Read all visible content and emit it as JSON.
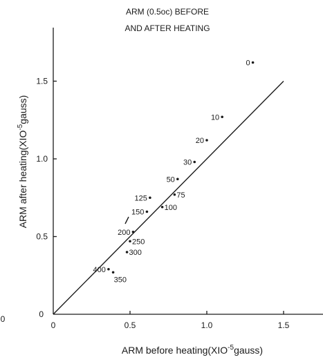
{
  "chart_data": {
    "type": "scatter",
    "title_lines": [
      "ARM (0.5oc) BEFORE",
      "AND AFTER HEATING"
    ],
    "xlabel": "ARM before heating(XIO",
    "xlabel_exp": "-5",
    "xlabel_end": "gauss)",
    "ylabel": "ARM after heating(XIO",
    "ylabel_exp": "-5",
    "ylabel_end": "gauss)",
    "xlim": [
      0,
      1.65
    ],
    "ylim": [
      0,
      1.85
    ],
    "x_ticks": [
      {
        "value": 0,
        "label": "0"
      },
      {
        "value": 0.5,
        "label": "0.5"
      },
      {
        "value": 1.0,
        "label": "1.0"
      },
      {
        "value": 1.5,
        "label": "1.5"
      }
    ],
    "y_ticks": [
      {
        "value": 0,
        "label": "0"
      },
      {
        "value": 0.5,
        "label": "0.5"
      },
      {
        "value": 1.0,
        "label": "1.0"
      },
      {
        "value": 1.5,
        "label": "1.5"
      }
    ],
    "fit_line": {
      "x": [
        0,
        1.5
      ],
      "y": [
        0,
        1.5
      ]
    },
    "points": [
      {
        "label": "0",
        "x": 1.3,
        "y": 1.62
      },
      {
        "label": "10",
        "x": 1.1,
        "y": 1.27
      },
      {
        "label": "20",
        "x": 1.0,
        "y": 1.12
      },
      {
        "label": "30",
        "x": 0.92,
        "y": 0.98
      },
      {
        "label": "50",
        "x": 0.81,
        "y": 0.87
      },
      {
        "label": "75",
        "x": 0.79,
        "y": 0.77
      },
      {
        "label": "125",
        "x": 0.63,
        "y": 0.75
      },
      {
        "label": "150",
        "x": 0.61,
        "y": 0.66
      },
      {
        "label": "100",
        "x": 0.71,
        "y": 0.69
      },
      {
        "label": "200",
        "x": 0.52,
        "y": 0.53
      },
      {
        "label": "250",
        "x": 0.5,
        "y": 0.47
      },
      {
        "label": "300",
        "x": 0.48,
        "y": 0.4
      },
      {
        "label": "400",
        "x": 0.36,
        "y": 0.29
      },
      {
        "label": "350",
        "x": 0.39,
        "y": 0.27
      }
    ]
  },
  "edge_labels": {
    "left_zero": "0"
  }
}
